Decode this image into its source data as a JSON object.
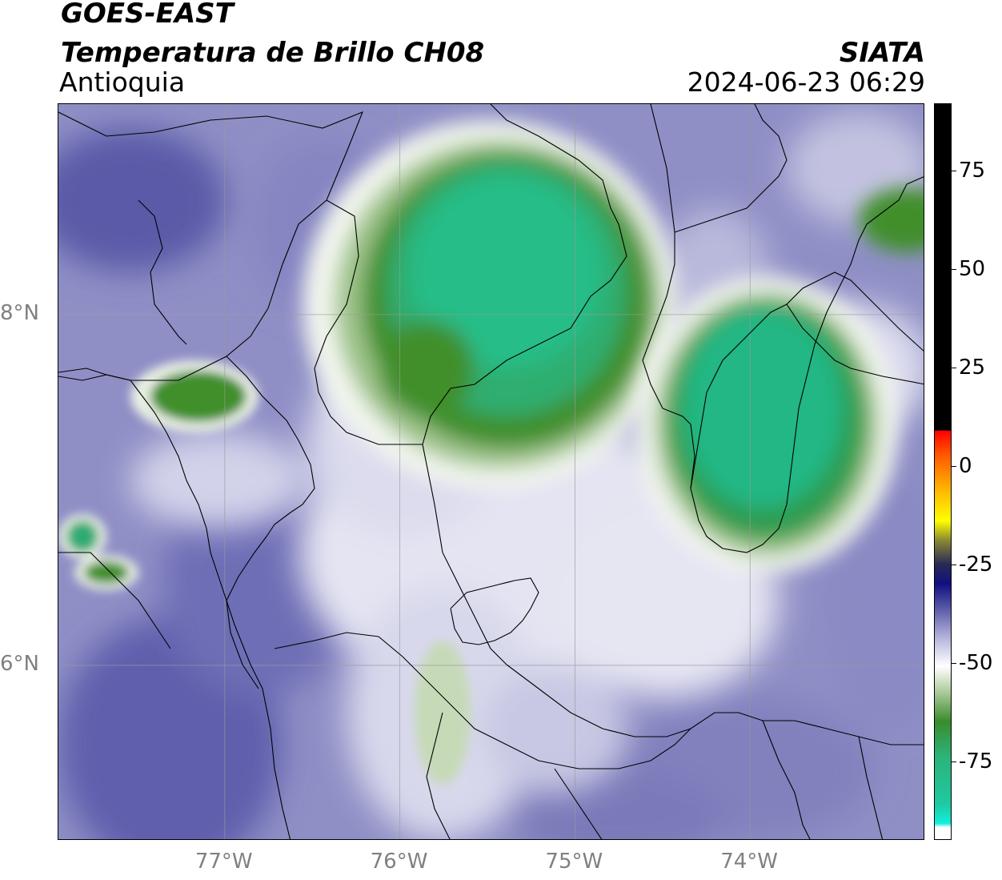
{
  "header": {
    "satellite": "GOES-EAST",
    "product": "Temperatura de Brillo CH08",
    "region": "Antioquia",
    "organization": "SIATA",
    "timestamp": "2024-06-23 06:29"
  },
  "map": {
    "lat_range": [
      5.0,
      9.2
    ],
    "lon_range": [
      -77.95,
      -73.0
    ],
    "lat_ticks": [
      {
        "value": 8,
        "label": "8°N"
      },
      {
        "value": 6,
        "label": "6°N"
      }
    ],
    "lon_ticks": [
      {
        "value": -77,
        "label": "77°W"
      },
      {
        "value": -76,
        "label": "76°W"
      },
      {
        "value": -75,
        "label": "75°W"
      },
      {
        "value": -74,
        "label": "74°W"
      }
    ],
    "grid": true
  },
  "colorbar": {
    "range": [
      -95,
      92
    ],
    "ticks": [
      {
        "value": 75,
        "label": "75"
      },
      {
        "value": 50,
        "label": "50"
      },
      {
        "value": 25,
        "label": "25"
      },
      {
        "value": 0,
        "label": "0"
      },
      {
        "value": -25,
        "label": "-25"
      },
      {
        "value": -50,
        "label": "-50"
      },
      {
        "value": -75,
        "label": "-75"
      }
    ],
    "stops": [
      {
        "value": 92,
        "color": "#000000"
      },
      {
        "value": 9,
        "color": "#000000"
      },
      {
        "value": 8.9,
        "color": "#ff0000"
      },
      {
        "value": 3,
        "color": "#ff5500"
      },
      {
        "value": -5,
        "color": "#ffaa00"
      },
      {
        "value": -14,
        "color": "#ffff00"
      },
      {
        "value": -19,
        "color": "#888833"
      },
      {
        "value": -25,
        "color": "#2a2a55"
      },
      {
        "value": -30,
        "color": "#101080"
      },
      {
        "value": -36,
        "color": "#5656a6"
      },
      {
        "value": -44,
        "color": "#b7b7dc"
      },
      {
        "value": -51,
        "color": "#ffffff"
      },
      {
        "value": -57,
        "color": "#b4cfa5"
      },
      {
        "value": -65,
        "color": "#3b8c2b"
      },
      {
        "value": -74,
        "color": "#2cb37a"
      },
      {
        "value": -86,
        "color": "#1fc9a1"
      },
      {
        "value": -91,
        "color": "#13f0dd"
      },
      {
        "value": -92,
        "color": "#ffffff"
      },
      {
        "value": -95,
        "color": "#ffffff"
      }
    ]
  }
}
